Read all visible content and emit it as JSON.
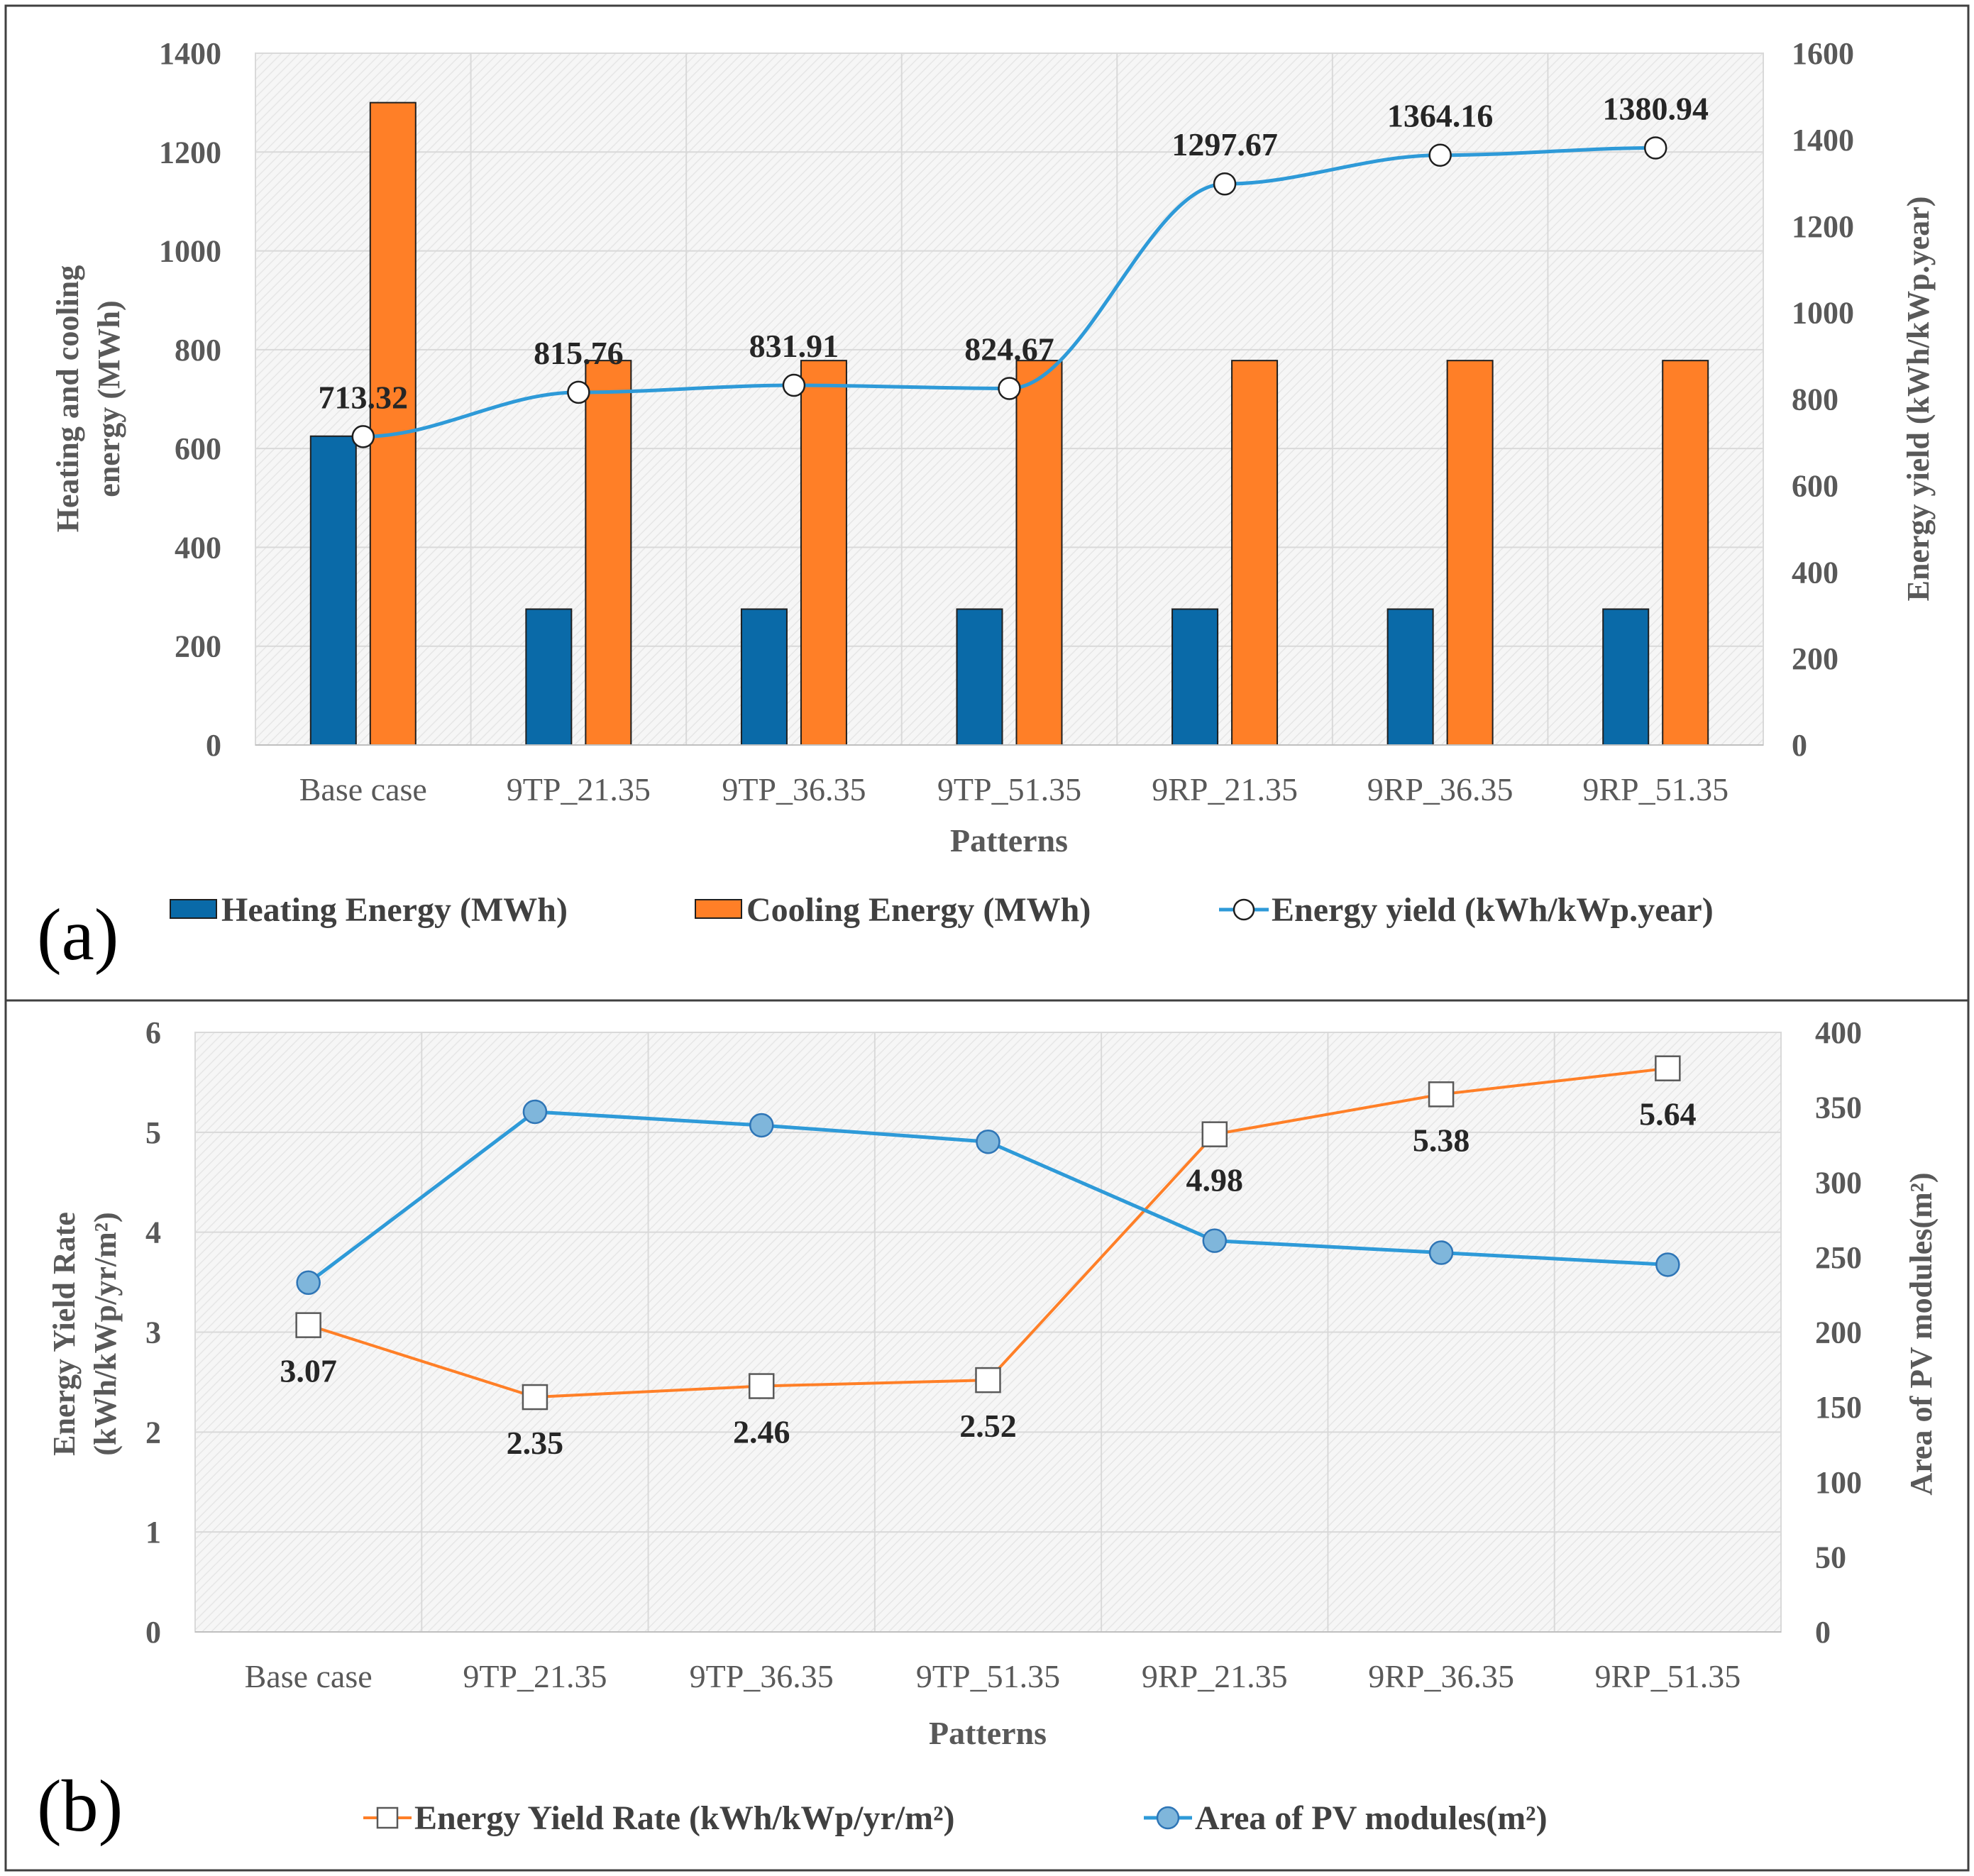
{
  "chart_data": [
    {
      "panel_label": "(a)",
      "type": "bar",
      "xlabel": "Patterns",
      "ylabel_lines": [
        "Heating and cooling",
        "energy (MWh)"
      ],
      "y2label": "Energy yield (kWh/kWp.year)",
      "ylim": [
        0,
        1400
      ],
      "yticks": [
        0,
        200,
        400,
        600,
        800,
        1000,
        1200,
        1400
      ],
      "y2lim": [
        0,
        1600
      ],
      "y2ticks": [
        0,
        200,
        400,
        600,
        800,
        1000,
        1200,
        1400,
        1600
      ],
      "categories": [
        "Base case",
        "9TP_21.35",
        "9TP_36.35",
        "9TP_51.35",
        "9RP_21.35",
        "9RP_36.35",
        "9RP_51.35"
      ],
      "series": [
        {
          "name": "Heating Energy (MWh)",
          "kind": "bar",
          "axis": "left",
          "color": "#0a6aa8",
          "values": [
            625,
            275,
            275,
            275,
            275,
            275,
            275
          ]
        },
        {
          "name": "Cooling Energy (MWh)",
          "kind": "bar",
          "axis": "left",
          "color": "#ff7f27",
          "values": [
            1300,
            778,
            778,
            778,
            778,
            778,
            778
          ]
        },
        {
          "name": "Energy yield (kWh/kWp.year)",
          "kind": "line",
          "axis": "right",
          "color": "#2e9ad8",
          "marker": "circle-open",
          "values": [
            713.32,
            815.76,
            831.91,
            824.67,
            1297.67,
            1364.16,
            1380.94
          ],
          "labels": [
            "713.32",
            "815.76",
            "831.91",
            "824.67",
            "1297.67",
            "1364.16",
            "1380.94"
          ]
        }
      ]
    },
    {
      "panel_label": "(b)",
      "type": "line",
      "xlabel": "Patterns",
      "ylabel_lines": [
        "Energy Yield Rate",
        "(kWh/kWp/yr/m²)"
      ],
      "y2label": "Area of PV modules(m²)",
      "ylim": [
        0,
        6
      ],
      "yticks": [
        0,
        1,
        2,
        3,
        4,
        5,
        6
      ],
      "y2lim": [
        0,
        400
      ],
      "y2ticks": [
        0,
        50,
        100,
        150,
        200,
        250,
        300,
        350,
        400
      ],
      "categories": [
        "Base case",
        "9TP_21.35",
        "9TP_36.35",
        "9TP_51.35",
        "9RP_21.35",
        "9RP_36.35",
        "9RP_51.35"
      ],
      "series": [
        {
          "name": "Energy Yield Rate (kWh/kWp/yr/m²)",
          "kind": "line",
          "axis": "left",
          "color": "#ff7f27",
          "marker": "square-open",
          "values": [
            3.07,
            2.35,
            2.46,
            2.52,
            4.98,
            5.38,
            5.64
          ],
          "labels": [
            "3.07",
            "2.35",
            "2.46",
            "2.52",
            "4.98",
            "5.38",
            "5.64"
          ]
        },
        {
          "name": "Area of PV modules(m²)",
          "kind": "line",
          "axis": "right",
          "color": "#2e9ad8",
          "marker": "circle-filled",
          "values": [
            233,
            347,
            338,
            327,
            261,
            253,
            245
          ]
        }
      ]
    }
  ]
}
